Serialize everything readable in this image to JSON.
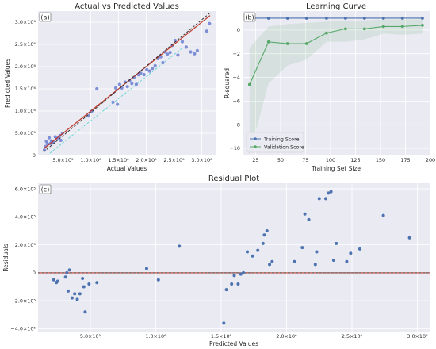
{
  "chart_data": [
    {
      "panel": "a",
      "panel_label": "(a)",
      "type": "scatter",
      "title": "Actual vs Predicted Values",
      "xlabel": "Actual Values",
      "ylabel": "Predicted Values",
      "xlim": [
        50000,
        3250000
      ],
      "ylim": [
        0,
        3250000
      ],
      "xticks": [
        500000,
        1000000,
        1500000,
        2000000,
        2500000,
        3000000
      ],
      "xtick_labels": [
        "5.0×10⁵",
        "1.0×10⁶",
        "1.5×10⁶",
        "2.0×10⁶",
        "2.5×10⁶",
        "3.0×10⁶"
      ],
      "yticks": [
        0,
        500000,
        1000000,
        1500000,
        2000000,
        2500000,
        3000000
      ],
      "ytick_labels": [
        "0",
        "5.0×10⁵",
        "1.0×10⁶",
        "1.5×10⁶",
        "2.0×10⁶",
        "2.5×10⁶",
        "3.0×10⁶"
      ],
      "grid": true,
      "colors": {
        "points": "#6b7fd4",
        "identity_line": "#c0392b",
        "fit_line": "#333333",
        "ci_line": "#6fd6d6"
      },
      "series": [
        {
          "kind": "points",
          "x": [
            165000,
            180000,
            200000,
            215000,
            250000,
            270000,
            290000,
            300000,
            330000,
            360000,
            380000,
            420000,
            445000,
            460000,
            490000,
            960000,
            1020000,
            1110000,
            1400000,
            1450000,
            1480000,
            1520000,
            1560000,
            1620000,
            1660000,
            1700000,
            1740000,
            1780000,
            1820000,
            1860000,
            1900000,
            1960000,
            2010000,
            2060000,
            2110000,
            2160000,
            2210000,
            2260000,
            2300000,
            2340000,
            2380000,
            2430000,
            2470000,
            2520000,
            2570000,
            2650000,
            2720000,
            2800000,
            2870000,
            2920000,
            3090000,
            3140000
          ],
          "y": [
            120000,
            200000,
            320000,
            260000,
            400000,
            270000,
            330000,
            310000,
            290000,
            420000,
            380000,
            400000,
            450000,
            340000,
            500000,
            890000,
            1000000,
            1500000,
            1200000,
            1520000,
            1150000,
            1600000,
            1520000,
            1650000,
            1550000,
            1680000,
            1620000,
            1760000,
            1600000,
            1820000,
            1850000,
            1820000,
            1930000,
            1900000,
            1960000,
            2020000,
            2180000,
            2220000,
            2090000,
            2330000,
            2280000,
            2320000,
            2480000,
            2590000,
            2260000,
            2560000,
            2440000,
            2330000,
            2290000,
            2360000,
            2800000,
            2970000
          ]
        },
        {
          "kind": "identity_line",
          "x": [
            150000,
            3150000
          ],
          "y": [
            150000,
            3150000
          ]
        },
        {
          "kind": "fit_line",
          "x": [
            150000,
            3150000
          ],
          "y": [
            80000,
            3210000
          ]
        },
        {
          "kind": "ci_line",
          "x": [
            150000,
            2650000
          ],
          "y": [
            -60000,
            2420000
          ]
        }
      ]
    },
    {
      "panel": "b",
      "panel_label": "(b)",
      "type": "line",
      "title": "Learning Curve",
      "xlabel": "Training Set Size",
      "ylabel": "R-squared",
      "xlim": [
        12,
        200
      ],
      "ylim": [
        -10.6,
        1.6
      ],
      "xticks": [
        25,
        50,
        75,
        100,
        125,
        150,
        175,
        200
      ],
      "yticks": [
        -10,
        -8,
        -6,
        -4,
        -2,
        0
      ],
      "grid": true,
      "legend": "bottom-left",
      "x": [
        19,
        38,
        57,
        76,
        96,
        115,
        134,
        153,
        172,
        192
      ],
      "series": [
        {
          "name": "Training Score",
          "color": "#4c72b0",
          "values": [
            1.0,
            1.0,
            1.0,
            1.0,
            1.0,
            1.0,
            1.0,
            1.0,
            1.0,
            1.0
          ]
        },
        {
          "name": "Validation Score",
          "color": "#55a868",
          "values": [
            -4.6,
            -1.0,
            -1.15,
            -1.15,
            -0.25,
            0.1,
            0.1,
            0.3,
            0.3,
            0.4
          ],
          "band_lower": [
            -10.5,
            -4.5,
            -3.0,
            -2.5,
            -1.0,
            -1.0,
            -0.8,
            -0.3,
            -0.4,
            -0.3
          ],
          "band_upper": [
            -1.5,
            0.3,
            0.5,
            0.6,
            0.7,
            0.8,
            0.8,
            0.9,
            0.9,
            0.9
          ]
        }
      ]
    },
    {
      "panel": "c",
      "panel_label": "(c)",
      "type": "scatter",
      "title": "Residual Plot",
      "xlabel": "Predicted Values",
      "ylabel": "Residuals",
      "xlim": [
        100000,
        3100000
      ],
      "ylim": [
        -420000,
        640000
      ],
      "xticks": [
        500000,
        1000000,
        1500000,
        2000000,
        2500000,
        3000000
      ],
      "xtick_labels": [
        "5.0×10⁵",
        "1.0×10⁶",
        "1.5×10⁶",
        "2.0×10⁶",
        "2.5×10⁶",
        "3.0×10⁶"
      ],
      "yticks": [
        -400000,
        -200000,
        0,
        200000,
        400000,
        600000
      ],
      "ytick_labels": [
        "−4.0×10⁵",
        "−2.0×10⁵",
        "0",
        "2.0×10⁵",
        "4.0×10⁵",
        "6.0×10⁵"
      ],
      "grid": true,
      "colors": {
        "points": "#4c72b0",
        "zero_line": "#c0392b"
      },
      "zero_line": 0,
      "points": {
        "x": [
          220000,
          240000,
          250000,
          310000,
          320000,
          330000,
          340000,
          360000,
          380000,
          400000,
          420000,
          440000,
          450000,
          460000,
          490000,
          550000,
          930000,
          1020000,
          1180000,
          1520000,
          1540000,
          1580000,
          1600000,
          1630000,
          1650000,
          1670000,
          1700000,
          1740000,
          1780000,
          1820000,
          1830000,
          1850000,
          1870000,
          1890000,
          2060000,
          2120000,
          2140000,
          2170000,
          2220000,
          2230000,
          2250000,
          2300000,
          2320000,
          2340000,
          2360000,
          2380000,
          2460000,
          2490000,
          2560000,
          2740000,
          2940000
        ],
        "y": [
          -50000,
          -70000,
          -60000,
          -30000,
          0,
          -130000,
          20000,
          -180000,
          -150000,
          -190000,
          -150000,
          -40000,
          -100000,
          -280000,
          -80000,
          -70000,
          30000,
          -50000,
          190000,
          -360000,
          -120000,
          -80000,
          -20000,
          -80000,
          -10000,
          0,
          150000,
          120000,
          160000,
          210000,
          270000,
          300000,
          60000,
          80000,
          80000,
          180000,
          420000,
          380000,
          60000,
          150000,
          530000,
          530000,
          570000,
          580000,
          90000,
          210000,
          80000,
          140000,
          170000,
          410000,
          250000
        ]
      }
    }
  ]
}
